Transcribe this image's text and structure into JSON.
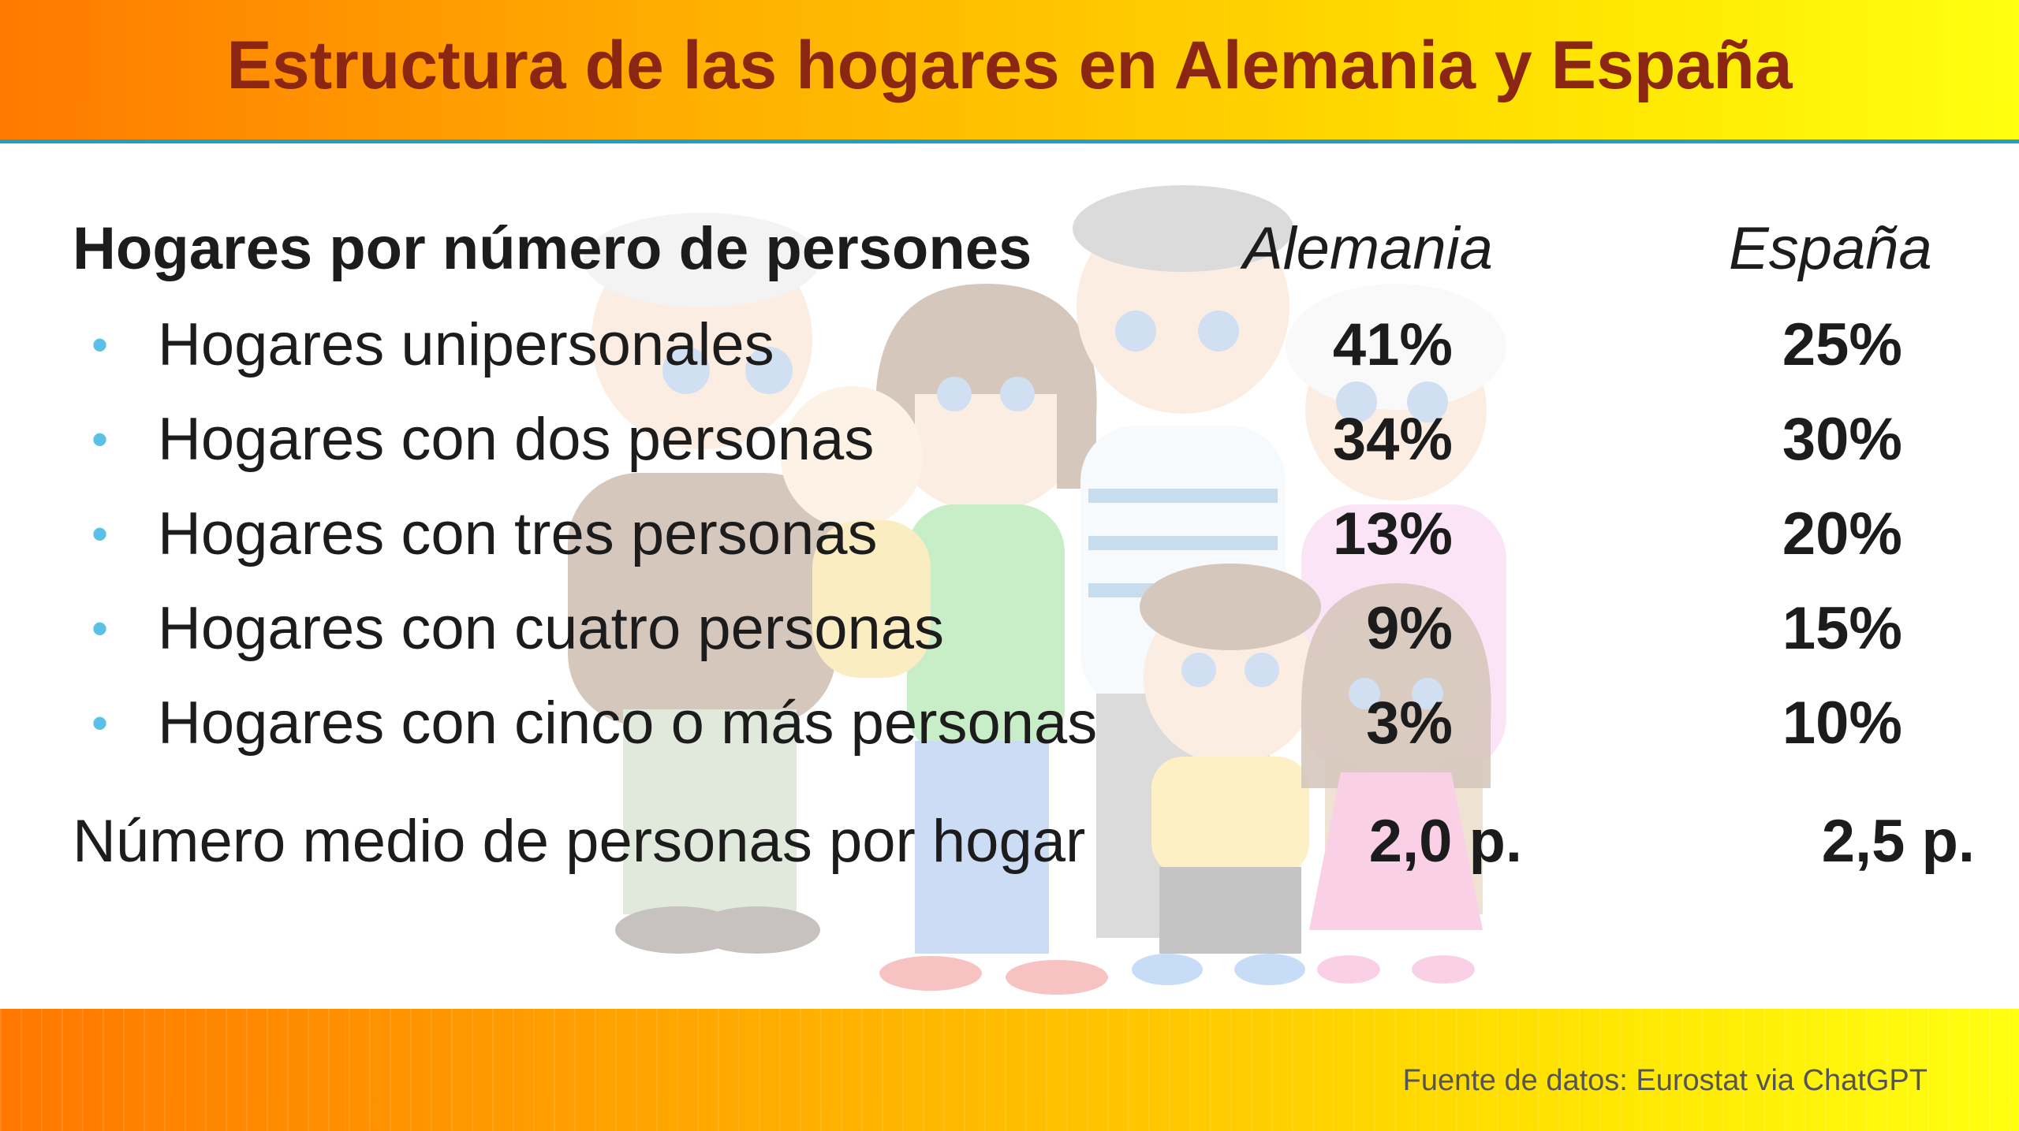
{
  "title": "Estructura de las hogares en Alemania y España",
  "table": {
    "header": {
      "label": "Hogares por número de persones",
      "country_a": "Alemania",
      "country_b": "España"
    },
    "rows": [
      {
        "label": "Hogares unipersonales",
        "alemania": "41%",
        "espana": "25%"
      },
      {
        "label": "Hogares con dos personas",
        "alemania": "34%",
        "espana": "30%"
      },
      {
        "label": "Hogares con tres personas",
        "alemania": "13%",
        "espana": "20%"
      },
      {
        "label": "Hogares con cuatro personas",
        "alemania": "9%",
        "espana": "15%"
      },
      {
        "label": "Hogares con cinco o más personas",
        "alemania": "3%",
        "espana": "10%"
      }
    ],
    "average": {
      "label": "Número medio de personas por hogar",
      "alemania": "2,0 p.",
      "espana": "2,5 p."
    }
  },
  "source": "Fuente de datos: Eurostat via ChatGPT",
  "colors": {
    "title": "#8a2612",
    "bullet": "#5bc0e8",
    "header_rule": "#20a0c8",
    "text": "#1c1c1c"
  },
  "background_image": "family-illustration-icon"
}
